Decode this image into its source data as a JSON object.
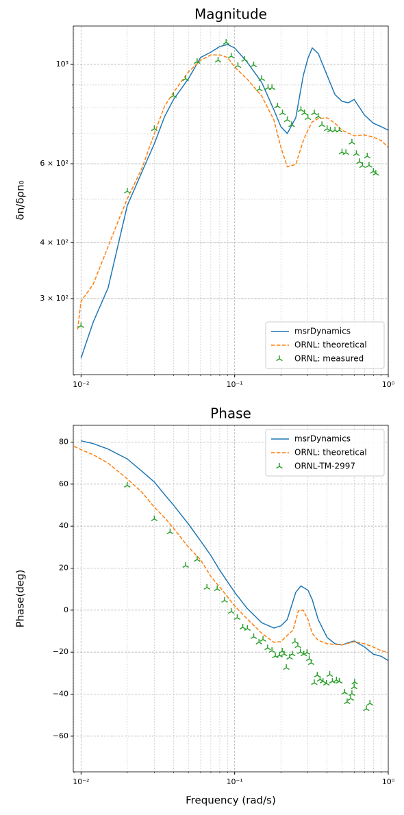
{
  "chart_data": [
    {
      "type": "line",
      "title": "Magnitude",
      "ylabel": "δn/δρn₀",
      "xscale": "log",
      "yscale": "log",
      "grid": true,
      "legend": "lower right",
      "xlim": [
        0.0089,
        1
      ],
      "ylim": [
        203,
        1218
      ],
      "xticks": [
        {
          "value": 0.01,
          "label": "10⁻²"
        },
        {
          "value": 0.1,
          "label": "10⁻¹"
        },
        {
          "value": 1,
          "label": "10⁰"
        }
      ],
      "yticks": [
        {
          "value": 300,
          "label": "3 × 10²"
        },
        {
          "value": 400,
          "label": "4 × 10²"
        },
        {
          "value": 600,
          "label": "6 × 10²"
        },
        {
          "value": 1000,
          "label": "10³"
        }
      ],
      "series": [
        {
          "name": "msrDynamics",
          "type": "line",
          "linestyle": "solid",
          "color": "#1f77b4",
          "x": [
            0.01,
            0.012,
            0.015,
            0.02,
            0.025,
            0.03,
            0.035,
            0.04,
            0.05,
            0.06,
            0.07,
            0.08,
            0.09,
            0.1,
            0.12,
            0.15,
            0.18,
            0.2,
            0.22,
            0.25,
            0.28,
            0.3,
            0.32,
            0.35,
            0.4,
            0.45,
            0.5,
            0.55,
            0.6,
            0.7,
            0.8,
            0.9,
            1.0
          ],
          "values": [
            221,
            266,
            317,
            484,
            577,
            665,
            765,
            835,
            929,
            1036,
            1065,
            1096,
            1108,
            1088,
            1014,
            912,
            792,
            726,
            701,
            760,
            945,
            1032,
            1088,
            1058,
            945,
            856,
            827,
            821,
            835,
            771,
            739,
            726,
            713
          ]
        },
        {
          "name": "ORNL: theoretical",
          "type": "line",
          "linestyle": "dashed",
          "color": "#ff7f0e",
          "x": [
            0.0095,
            0.01,
            0.012,
            0.015,
            0.018,
            0.02,
            0.025,
            0.03,
            0.035,
            0.04,
            0.05,
            0.06,
            0.07,
            0.08,
            0.09,
            0.1,
            0.12,
            0.15,
            0.18,
            0.2,
            0.22,
            0.25,
            0.28,
            0.3,
            0.32,
            0.35,
            0.4,
            0.45,
            0.5,
            0.6,
            0.7,
            0.8,
            0.9,
            1.0
          ],
          "values": [
            256,
            296,
            323,
            392,
            459,
            501,
            588,
            700,
            807,
            866,
            962,
            1021,
            1050,
            1050,
            1036,
            986,
            929,
            850,
            752,
            653,
            591,
            598,
            676,
            713,
            744,
            757,
            760,
            739,
            713,
            693,
            696,
            688,
            676,
            653
          ]
        },
        {
          "name": "ORNL: measured",
          "type": "scatter",
          "color": "#2ca02c",
          "x": [
            0.01,
            0.02,
            0.03,
            0.04,
            0.048,
            0.057,
            0.078,
            0.088,
            0.095,
            0.105,
            0.116,
            0.133,
            0.145,
            0.15,
            0.165,
            0.175,
            0.19,
            0.205,
            0.22,
            0.235,
            0.27,
            0.285,
            0.3,
            0.33,
            0.35,
            0.37,
            0.4,
            0.42,
            0.45,
            0.48,
            0.5,
            0.53,
            0.58,
            0.62,
            0.65,
            0.68,
            0.73,
            0.75,
            0.8,
            0.83
          ],
          "values": [
            261,
            521,
            718,
            851,
            929,
            1014,
            1021,
            1119,
            1043,
            993,
            1025,
            997,
            881,
            929,
            887,
            887,
            807,
            779,
            752,
            733,
            792,
            779,
            760,
            779,
            765,
            733,
            718,
            713,
            713,
            713,
            637,
            635,
            670,
            632,
            606,
            594,
            624,
            595,
            577,
            571
          ]
        }
      ]
    },
    {
      "type": "line",
      "title": "Phase",
      "xlabel": "Frequency (rad/s)",
      "ylabel": "Phase(deg)",
      "xscale": "log",
      "yscale": "linear",
      "grid": true,
      "legend": "upper right",
      "xlim": [
        0.0089,
        1
      ],
      "ylim": [
        -77,
        88
      ],
      "xticks": [
        {
          "value": 0.01,
          "label": "10⁻²"
        },
        {
          "value": 0.1,
          "label": "10⁻¹"
        },
        {
          "value": 1,
          "label": "10⁰"
        }
      ],
      "yticks": [
        {
          "value": -60,
          "label": "−60"
        },
        {
          "value": -40,
          "label": "−40"
        },
        {
          "value": -20,
          "label": "−20"
        },
        0,
        20,
        40,
        60,
        80
      ],
      "series": [
        {
          "name": "msrDynamics",
          "type": "line",
          "linestyle": "solid",
          "color": "#1f77b4",
          "x": [
            0.01,
            0.012,
            0.015,
            0.02,
            0.025,
            0.03,
            0.035,
            0.04,
            0.05,
            0.06,
            0.07,
            0.08,
            0.1,
            0.12,
            0.15,
            0.18,
            0.2,
            0.22,
            0.25,
            0.27,
            0.3,
            0.32,
            0.35,
            0.4,
            0.45,
            0.5,
            0.55,
            0.6,
            0.7,
            0.8,
            0.9,
            1.0
          ],
          "values": [
            80.6,
            79.3,
            76.7,
            72,
            66,
            61,
            55,
            50,
            41,
            33,
            26,
            19,
            8.5,
            1,
            -6,
            -8.5,
            -7.5,
            -4.5,
            8.5,
            11.5,
            9.5,
            5,
            -4.5,
            -13,
            -16,
            -16.6,
            -15.5,
            -14.7,
            -17.5,
            -21,
            -22,
            -24
          ]
        },
        {
          "name": "ORNL: theoretical",
          "type": "line",
          "linestyle": "dashed",
          "color": "#ff7f0e",
          "x": [
            0.009,
            0.01,
            0.012,
            0.015,
            0.02,
            0.025,
            0.03,
            0.035,
            0.04,
            0.05,
            0.06,
            0.07,
            0.08,
            0.1,
            0.12,
            0.15,
            0.18,
            0.2,
            0.22,
            0.24,
            0.26,
            0.28,
            0.3,
            0.32,
            0.35,
            0.4,
            0.5,
            0.6,
            0.7,
            0.8,
            0.9,
            1.0
          ],
          "values": [
            78,
            76.4,
            74,
            70,
            62.5,
            56,
            49,
            44,
            39,
            30,
            24,
            16,
            11,
            2,
            -4,
            -11,
            -15.3,
            -15,
            -12,
            -9.5,
            -0.3,
            0,
            -4.5,
            -11,
            -14.4,
            -16,
            -16.6,
            -15,
            -16,
            -17.6,
            -19.3,
            -20.2
          ]
        },
        {
          "name": "ORNL-TM-2997",
          "type": "scatter",
          "color": "#2ca02c",
          "x": [
            0.02,
            0.03,
            0.038,
            0.048,
            0.057,
            0.066,
            0.077,
            0.086,
            0.095,
            0.104,
            0.113,
            0.121,
            0.133,
            0.144,
            0.153,
            0.164,
            0.175,
            0.184,
            0.196,
            0.204,
            0.21,
            0.217,
            0.228,
            0.237,
            0.247,
            0.258,
            0.268,
            0.282,
            0.296,
            0.306,
            0.315,
            0.33,
            0.345,
            0.36,
            0.376,
            0.396,
            0.416,
            0.433,
            0.46,
            0.48,
            0.52,
            0.54,
            0.57,
            0.58,
            0.6,
            0.605,
            0.72,
            0.76
          ],
          "values": [
            59.4,
            43.4,
            37.2,
            21.2,
            24.1,
            10.8,
            10.1,
            4.6,
            -0.7,
            -3.6,
            -8.2,
            -8.8,
            -12.7,
            -15.3,
            -14,
            -18,
            -19.3,
            -21.9,
            -21.5,
            -19.6,
            -20.9,
            -27.4,
            -22.5,
            -20.9,
            -15,
            -17,
            -19.9,
            -20.9,
            -20.2,
            -23.2,
            -25.1,
            -34.6,
            -31,
            -33,
            -33.9,
            -34.9,
            -30.7,
            -33.9,
            -33.3,
            -33.9,
            -39.2,
            -43.7,
            -42.1,
            -39.8,
            -36.6,
            -34.3,
            -47,
            -44.4
          ]
        }
      ]
    }
  ]
}
